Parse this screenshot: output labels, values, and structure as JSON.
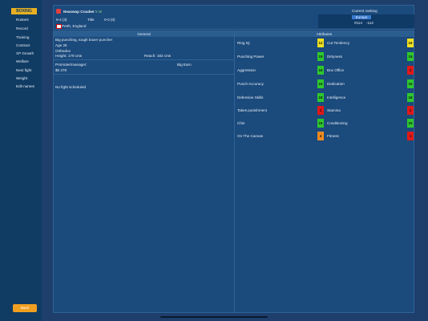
{
  "sidebar": {
    "logo": "BOXING",
    "menu": [
      "Rosters",
      "Record",
      "Training",
      "Contract",
      "XP Growth",
      "Welfare",
      "Next fight",
      "Weight",
      "Edit names"
    ],
    "button": "Back"
  },
  "header": {
    "name": "Neaswap Crauber",
    "tag": "5 W",
    "record": "9-4 (3)",
    "title_label": "Title",
    "title_record": "0-0 (0)",
    "location": "Perth, England",
    "ranking_label": "Current ranking",
    "ranking_region": "Europe",
    "rank": "#114",
    "rank_change": "-114"
  },
  "general": {
    "title": "General",
    "style": "Big punching, tough boxer puncher",
    "age": "Age 25",
    "stance": "Orthodox",
    "height": "Height: 179 cms",
    "reach": "Reach: 182 cms",
    "promoter_label": "Promoter/manager:",
    "promoter": "Big Earn",
    "money": "$5 378",
    "fight": "No fight scheduled"
  },
  "attributes": {
    "title": "Attributes",
    "rows": [
      {
        "name": "Ring IQ",
        "value": 12,
        "color": "#f0e020"
      },
      {
        "name": "Cut Tendency",
        "value": 16,
        "color": "#f0e020"
      },
      {
        "name": "Punching Power",
        "value": 15,
        "color": "#2ec82e"
      },
      {
        "name": "Dirtyness",
        "value": 15,
        "color": "#2ec82e"
      },
      {
        "name": "Aggression",
        "value": 16,
        "color": "#2ec82e"
      },
      {
        "name": "Box Office",
        "value": 1,
        "color": "#e01818"
      },
      {
        "name": "Punch Accuracy",
        "value": 16,
        "color": "#2ec82e"
      },
      {
        "name": "Dedication",
        "value": 16,
        "color": "#2ec82e"
      },
      {
        "name": "Defensive Skills",
        "value": 18,
        "color": "#2ec82e"
      },
      {
        "name": "Intelligence",
        "value": 18,
        "color": "#2ec82e"
      },
      {
        "name": "Takes punishment",
        "value": 1,
        "color": "#e01818"
      },
      {
        "name": "Stamina",
        "value": 1,
        "color": "#e01818"
      },
      {
        "name": "Chin",
        "value": 15,
        "color": "#2ec82e"
      },
      {
        "name": "Conditioning",
        "value": 15,
        "color": "#2ec82e"
      },
      {
        "name": "On The Canvas",
        "value": 4,
        "color": "#f08a20"
      },
      {
        "name": "Fitness",
        "value": 1,
        "color": "#e01818"
      }
    ]
  }
}
